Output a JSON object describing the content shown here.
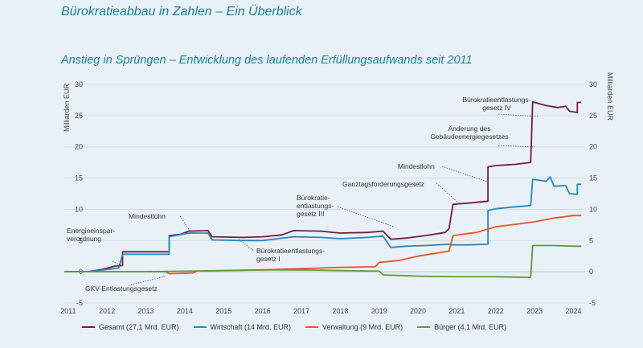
{
  "page": {
    "title": "Bürokratieabbau in Zahlen – Ein Überblick"
  },
  "chart_data": {
    "type": "line",
    "title": "Anstieg in Sprüngen – Entwicklung des laufenden Erfüllungsaufwands seit 2011",
    "ylabel": "Milliarden EUR",
    "ylabel_right": "Milliarden EUR",
    "ylim": [
      -5,
      30
    ],
    "xlim": [
      2010.9,
      2024.3
    ],
    "yticks": [
      -5,
      0,
      5,
      10,
      15,
      20,
      25,
      30
    ],
    "xticks": [
      "2011",
      "2012",
      "2013",
      "2014",
      "2015",
      "2016",
      "2017",
      "2018",
      "2019",
      "2020",
      "2021",
      "2022",
      "2023",
      "2024"
    ],
    "grid": true,
    "legend_position": "bottom",
    "series": [
      {
        "name": "Gesamt (27,1 Mrd. EUR)",
        "color": "#7a1a3f",
        "points": [
          [
            2010.9,
            0
          ],
          [
            2011.5,
            0
          ],
          [
            2011.9,
            0.4
          ],
          [
            2012.2,
            0.9
          ],
          [
            2012.4,
            1.0
          ],
          [
            2012.4,
            3.2
          ],
          [
            2013.6,
            3.2
          ],
          [
            2013.6,
            5.8
          ],
          [
            2013.9,
            6.0
          ],
          [
            2014.1,
            6.5
          ],
          [
            2014.6,
            6.6
          ],
          [
            2014.7,
            5.6
          ],
          [
            2015.5,
            5.5
          ],
          [
            2016.0,
            5.6
          ],
          [
            2016.5,
            5.9
          ],
          [
            2016.8,
            6.6
          ],
          [
            2017.5,
            6.5
          ],
          [
            2018.0,
            6.2
          ],
          [
            2018.7,
            6.3
          ],
          [
            2019.1,
            6.5
          ],
          [
            2019.3,
            5.2
          ],
          [
            2019.7,
            5.4
          ],
          [
            2020.2,
            5.8
          ],
          [
            2020.7,
            6.3
          ],
          [
            2020.8,
            6.9
          ],
          [
            2020.9,
            10.8
          ],
          [
            2021.3,
            11.0
          ],
          [
            2021.8,
            11.3
          ],
          [
            2021.8,
            16.8
          ],
          [
            2022.0,
            17.0
          ],
          [
            2022.5,
            17.2
          ],
          [
            2022.9,
            17.5
          ],
          [
            2022.95,
            27.2
          ],
          [
            2023.3,
            26.6
          ],
          [
            2023.6,
            26.3
          ],
          [
            2023.8,
            26.5
          ],
          [
            2023.9,
            25.7
          ],
          [
            2024.1,
            25.5
          ],
          [
            2024.1,
            27.1
          ],
          [
            2024.2,
            27.1
          ]
        ]
      },
      {
        "name": "Wirtschaft (14 Mrd. EUR)",
        "color": "#2a86c0",
        "points": [
          [
            2010.9,
            0
          ],
          [
            2011.5,
            0
          ],
          [
            2011.9,
            0.3
          ],
          [
            2012.3,
            0.6
          ],
          [
            2012.4,
            2.8
          ],
          [
            2013.6,
            2.8
          ],
          [
            2013.6,
            5.6
          ],
          [
            2014.1,
            6.2
          ],
          [
            2014.6,
            6.2
          ],
          [
            2014.7,
            5.1
          ],
          [
            2015.5,
            5.0
          ],
          [
            2016.0,
            5.0
          ],
          [
            2016.8,
            5.6
          ],
          [
            2017.5,
            5.5
          ],
          [
            2018.0,
            5.3
          ],
          [
            2018.7,
            5.5
          ],
          [
            2019.1,
            5.7
          ],
          [
            2019.3,
            3.9
          ],
          [
            2019.7,
            4.1
          ],
          [
            2020.2,
            4.2
          ],
          [
            2020.8,
            4.4
          ],
          [
            2020.9,
            4.3
          ],
          [
            2021.3,
            4.3
          ],
          [
            2021.8,
            4.4
          ],
          [
            2021.8,
            9.8
          ],
          [
            2022.0,
            10.1
          ],
          [
            2022.5,
            10.4
          ],
          [
            2022.9,
            10.6
          ],
          [
            2022.95,
            14.8
          ],
          [
            2023.3,
            14.5
          ],
          [
            2023.4,
            15.2
          ],
          [
            2023.5,
            13.7
          ],
          [
            2023.8,
            13.8
          ],
          [
            2023.9,
            12.5
          ],
          [
            2024.1,
            12.4
          ],
          [
            2024.1,
            14.0
          ],
          [
            2024.2,
            14.0
          ]
        ]
      },
      {
        "name": "Verwaltung (9 Mrd. EUR)",
        "color": "#e8552b",
        "points": [
          [
            2010.9,
            0
          ],
          [
            2013.5,
            0
          ],
          [
            2013.6,
            -0.3
          ],
          [
            2014.2,
            -0.2
          ],
          [
            2014.3,
            0.1
          ],
          [
            2015.0,
            0.2
          ],
          [
            2016.0,
            0.3
          ],
          [
            2017.0,
            0.5
          ],
          [
            2018.0,
            0.7
          ],
          [
            2018.9,
            0.8
          ],
          [
            2019.0,
            1.5
          ],
          [
            2019.5,
            1.8
          ],
          [
            2020.0,
            2.5
          ],
          [
            2020.5,
            3.0
          ],
          [
            2020.8,
            3.3
          ],
          [
            2020.9,
            5.8
          ],
          [
            2021.5,
            6.3
          ],
          [
            2022.0,
            7.2
          ],
          [
            2022.5,
            7.6
          ],
          [
            2023.0,
            8.0
          ],
          [
            2023.5,
            8.6
          ],
          [
            2024.0,
            9.0
          ],
          [
            2024.2,
            9.0
          ]
        ]
      },
      {
        "name": "Bürger (4,1 Mrd. EUR)",
        "color": "#5e9a3b",
        "points": [
          [
            2010.9,
            0
          ],
          [
            2013.0,
            0
          ],
          [
            2014.0,
            0.1
          ],
          [
            2015.0,
            0.2
          ],
          [
            2016.0,
            0.3
          ],
          [
            2017.0,
            0.3
          ],
          [
            2018.0,
            0.2
          ],
          [
            2019.0,
            0.1
          ],
          [
            2019.1,
            -0.5
          ],
          [
            2020.0,
            -0.7
          ],
          [
            2021.0,
            -0.8
          ],
          [
            2022.0,
            -0.8
          ],
          [
            2022.9,
            -0.9
          ],
          [
            2022.95,
            4.2
          ],
          [
            2023.5,
            4.2
          ],
          [
            2024.0,
            4.1
          ],
          [
            2024.2,
            4.1
          ]
        ]
      }
    ],
    "annotations": [
      {
        "lines": [
          "Energieeinspar-",
          "verordnung"
        ]
      },
      {
        "lines": [
          "Mindestlohn"
        ]
      },
      {
        "lines": [
          "Bürokratieentlastungs-",
          "gesetz I"
        ]
      },
      {
        "lines": [
          "GKV-Entlastungsgesetz"
        ]
      },
      {
        "lines": [
          "Bürokratie-",
          "entlastungs-",
          "gesetz III"
        ]
      },
      {
        "lines": [
          "Ganztagsförderungsgesetz"
        ]
      },
      {
        "lines": [
          "Mindestlohn"
        ]
      },
      {
        "lines": [
          "Änderung des",
          "Gebäudeenergiegesetzes"
        ]
      },
      {
        "lines": [
          "Bürokratieentlastungs-",
          "gesetz IV"
        ]
      }
    ]
  }
}
